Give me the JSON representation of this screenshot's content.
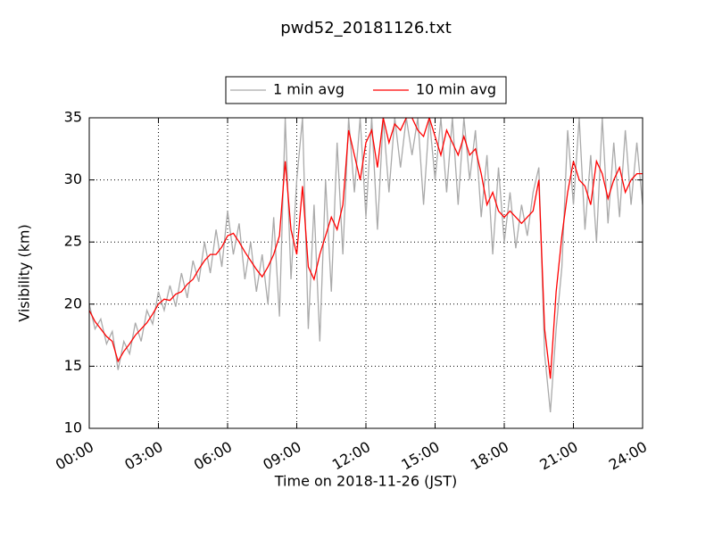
{
  "chart_data": {
    "type": "line",
    "title": "pwd52_20181126.txt",
    "x_label": "Time on 2018-11-26 (JST)",
    "y_label": "Visibility (km)",
    "x": [
      0,
      0.25,
      0.5,
      0.75,
      1,
      1.25,
      1.5,
      1.75,
      2,
      2.25,
      2.5,
      2.75,
      3,
      3.25,
      3.5,
      3.75,
      4,
      4.25,
      4.5,
      4.75,
      5,
      5.25,
      5.5,
      5.75,
      6,
      6.25,
      6.5,
      6.75,
      7,
      7.25,
      7.5,
      7.75,
      8,
      8.25,
      8.5,
      8.75,
      9,
      9.25,
      9.5,
      9.75,
      10,
      10.25,
      10.5,
      10.75,
      11,
      11.25,
      11.5,
      11.75,
      12,
      12.25,
      12.5,
      12.75,
      13,
      13.25,
      13.5,
      13.75,
      14,
      14.25,
      14.5,
      14.75,
      15,
      15.25,
      15.5,
      15.75,
      16,
      16.25,
      16.5,
      16.75,
      17,
      17.25,
      17.5,
      17.75,
      18,
      18.25,
      18.5,
      18.75,
      19,
      19.25,
      19.5,
      19.75,
      20,
      20.25,
      20.5,
      20.75,
      21,
      21.25,
      21.5,
      21.75,
      22,
      22.25,
      22.5,
      22.75,
      23,
      23.25,
      23.5,
      23.75,
      24
    ],
    "series": [
      {
        "name": "1 min avg",
        "color": "#aaaaaa",
        "values": [
          20,
          18,
          18.8,
          16.8,
          17.8,
          14.7,
          17,
          16,
          18.5,
          17,
          19.5,
          18.4,
          21,
          19.5,
          21.5,
          19.8,
          22.5,
          20.5,
          23.5,
          21.8,
          25,
          22.5,
          26,
          23,
          27.5,
          24,
          26.5,
          22,
          25,
          21,
          24,
          20,
          27,
          19,
          35,
          22,
          30,
          35,
          18,
          28,
          17,
          30,
          21,
          33,
          24,
          35,
          29,
          35,
          27,
          35,
          26,
          35,
          29,
          35,
          31,
          35,
          32,
          35,
          28,
          35,
          30,
          35,
          29,
          35,
          28,
          35,
          30,
          34,
          27,
          32,
          24,
          31,
          25,
          29,
          24.5,
          28,
          25.5,
          29,
          31,
          16,
          11.3,
          18,
          23,
          34,
          28,
          35,
          26,
          32,
          25,
          35,
          26.5,
          33,
          27,
          34,
          28,
          33,
          28
        ]
      },
      {
        "name": "10 min avg",
        "color": "#ff0000",
        "values": [
          19.5,
          18.6,
          18,
          17.4,
          17,
          15.4,
          16.2,
          16.8,
          17.5,
          18,
          18.5,
          19.2,
          20,
          20.4,
          20.3,
          20.8,
          21,
          21.6,
          22,
          22.8,
          23.5,
          24,
          24,
          24.6,
          25.5,
          25.7,
          25,
          24.2,
          23.5,
          22.8,
          22.2,
          23,
          24,
          25.5,
          31.5,
          26,
          24,
          29.5,
          23,
          22,
          24,
          25.5,
          27,
          26,
          28,
          34,
          32,
          30,
          33,
          34,
          31,
          35,
          33,
          34.5,
          34,
          35,
          35,
          34,
          33.5,
          35,
          33.5,
          32,
          34,
          33,
          32,
          33.5,
          32,
          32.5,
          30.5,
          28,
          29,
          27.5,
          27,
          27.5,
          27,
          26.5,
          27,
          27.5,
          30,
          18,
          14,
          21,
          25.5,
          29,
          31.5,
          30,
          29.5,
          28,
          31.5,
          30.5,
          28.5,
          30,
          31,
          29,
          30,
          30.5,
          30.5
        ]
      }
    ],
    "xlim": [
      0,
      24
    ],
    "xticks": [
      {
        "value": 0,
        "label": "00:00"
      },
      {
        "value": 3,
        "label": "03:00"
      },
      {
        "value": 6,
        "label": "06:00"
      },
      {
        "value": 9,
        "label": "09:00"
      },
      {
        "value": 12,
        "label": "12:00"
      },
      {
        "value": 15,
        "label": "15:00"
      },
      {
        "value": 18,
        "label": "18:00"
      },
      {
        "value": 21,
        "label": "21:00"
      },
      {
        "value": 24,
        "label": "24:00"
      }
    ],
    "ylim": [
      10,
      35
    ],
    "yticks": [
      10,
      15,
      20,
      25,
      30,
      35
    ],
    "grid": true,
    "legend": "top"
  }
}
